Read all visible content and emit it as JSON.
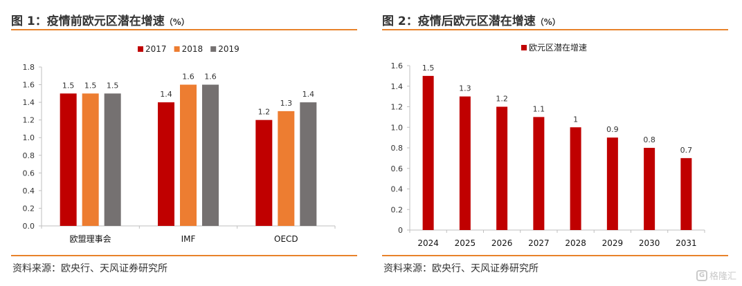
{
  "left": {
    "title": "图 1：疫情前欧元区潜在增速",
    "title_unit": "（%）",
    "source": "资料来源：欧央行、天风证券研究所",
    "legend": [
      "2017",
      "2018",
      "2019"
    ]
  },
  "right": {
    "title": "图 2：疫情后欧元区潜在增速",
    "title_unit": "（%）",
    "source": "资料来源：欧央行、天风证券研究所",
    "legend": [
      "欧元区潜在增速"
    ]
  },
  "watermark": {
    "icon": "gelonghui-logo-icon",
    "logo_glyph": "G",
    "text": "格隆汇"
  },
  "colors": {
    "red": "#c00000",
    "orange": "#ed7d31",
    "gray": "#757171",
    "accent": "#e8822a"
  },
  "chart_data": [
    {
      "type": "bar",
      "categories": [
        "欧盟理事会",
        "IMF",
        "OECD"
      ],
      "series": [
        {
          "name": "2017",
          "values": [
            1.5,
            1.4,
            1.2
          ]
        },
        {
          "name": "2018",
          "values": [
            1.5,
            1.6,
            1.3
          ]
        },
        {
          "name": "2019",
          "values": [
            1.5,
            1.6,
            1.4
          ]
        }
      ],
      "data_labels": [
        [
          "1.5",
          "1.4",
          "1.2"
        ],
        [
          "1.5",
          "1.6",
          "1.3"
        ],
        [
          "1.5",
          "1.6",
          "1.4"
        ]
      ],
      "ylim": [
        0,
        1.8
      ],
      "yticks": [
        0.0,
        0.2,
        0.4,
        0.6,
        0.8,
        1.0,
        1.2,
        1.4,
        1.6,
        1.8
      ],
      "ytick_labels": [
        "0.0",
        "0.2",
        "0.4",
        "0.6",
        "0.8",
        "1.0",
        "1.2",
        "1.4",
        "1.6",
        "1.8"
      ],
      "legend_position": "top",
      "grid": false
    },
    {
      "type": "bar",
      "categories": [
        "2024",
        "2025",
        "2026",
        "2027",
        "2028",
        "2029",
        "2030",
        "2031"
      ],
      "series": [
        {
          "name": "欧元区潜在增速",
          "values": [
            1.5,
            1.3,
            1.2,
            1.1,
            1.0,
            0.9,
            0.8,
            0.7
          ]
        }
      ],
      "data_labels": [
        [
          "1.5",
          "1.3",
          "1.2",
          "1.1",
          "1",
          "0.9",
          "0.8",
          "0.7"
        ]
      ],
      "ylim": [
        0,
        1.6
      ],
      "yticks": [
        0.0,
        0.2,
        0.4,
        0.6,
        0.8,
        1.0,
        1.2,
        1.4,
        1.6
      ],
      "ytick_labels": [
        "0",
        "0.2",
        "0.4",
        "0.6",
        "0.8",
        "1.0",
        "1.2",
        "1.4",
        "1.6"
      ],
      "legend_position": "top",
      "grid": false
    }
  ]
}
